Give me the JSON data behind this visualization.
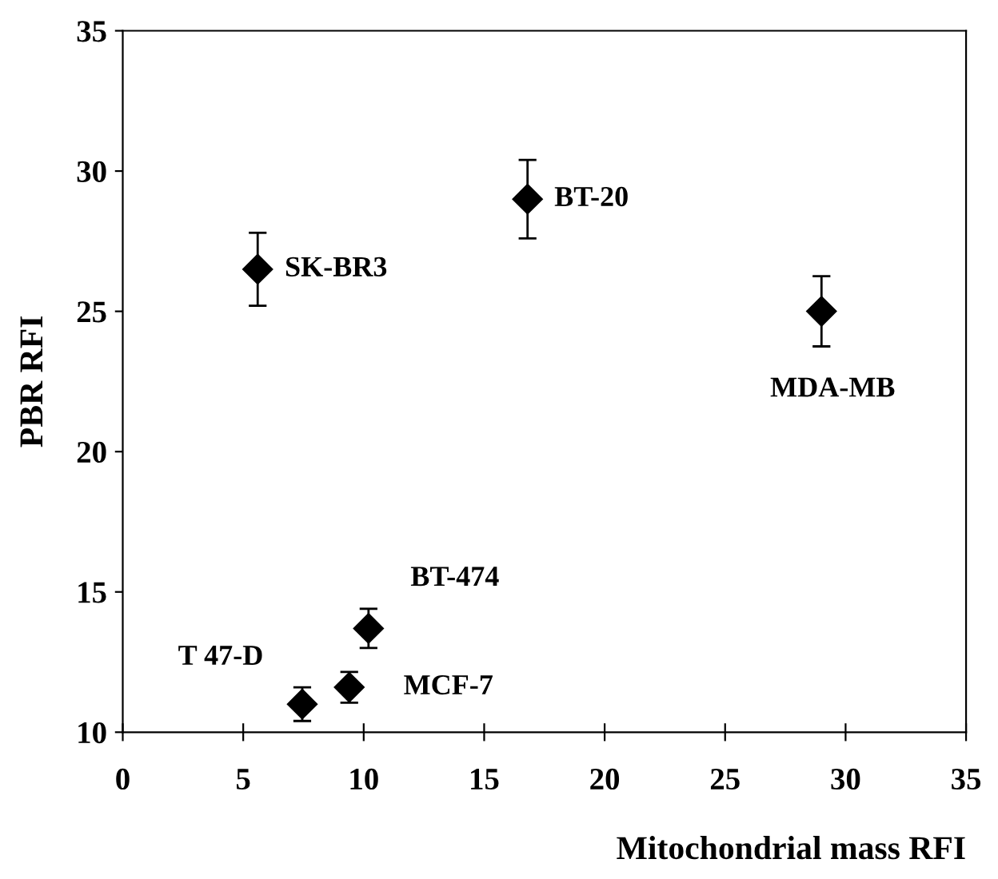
{
  "chart_data": {
    "type": "scatter",
    "xlabel": "Mitochondrial mass RFI",
    "ylabel": "PBR RFI",
    "x": [
      5.6,
      16.8,
      29.0,
      10.2,
      9.4,
      7.45
    ],
    "values": [
      26.5,
      29.0,
      25.0,
      13.7,
      11.6,
      11.0
    ],
    "errors": [
      1.3,
      1.4,
      1.25,
      0.7,
      0.55,
      0.6
    ],
    "color": "#000000",
    "marker": "diamond",
    "xlim": [
      0,
      35
    ],
    "xticks": [
      0,
      5,
      10,
      15,
      20,
      25,
      30,
      35
    ],
    "ylim": [
      10,
      35
    ],
    "yticks": [
      10,
      15,
      20,
      25,
      30,
      35
    ],
    "grid": false,
    "annotations": [
      "SK-BR3",
      "BT-20",
      "MDA-MB",
      "BT-474",
      "MCF-7",
      "T 47-D"
    ]
  }
}
